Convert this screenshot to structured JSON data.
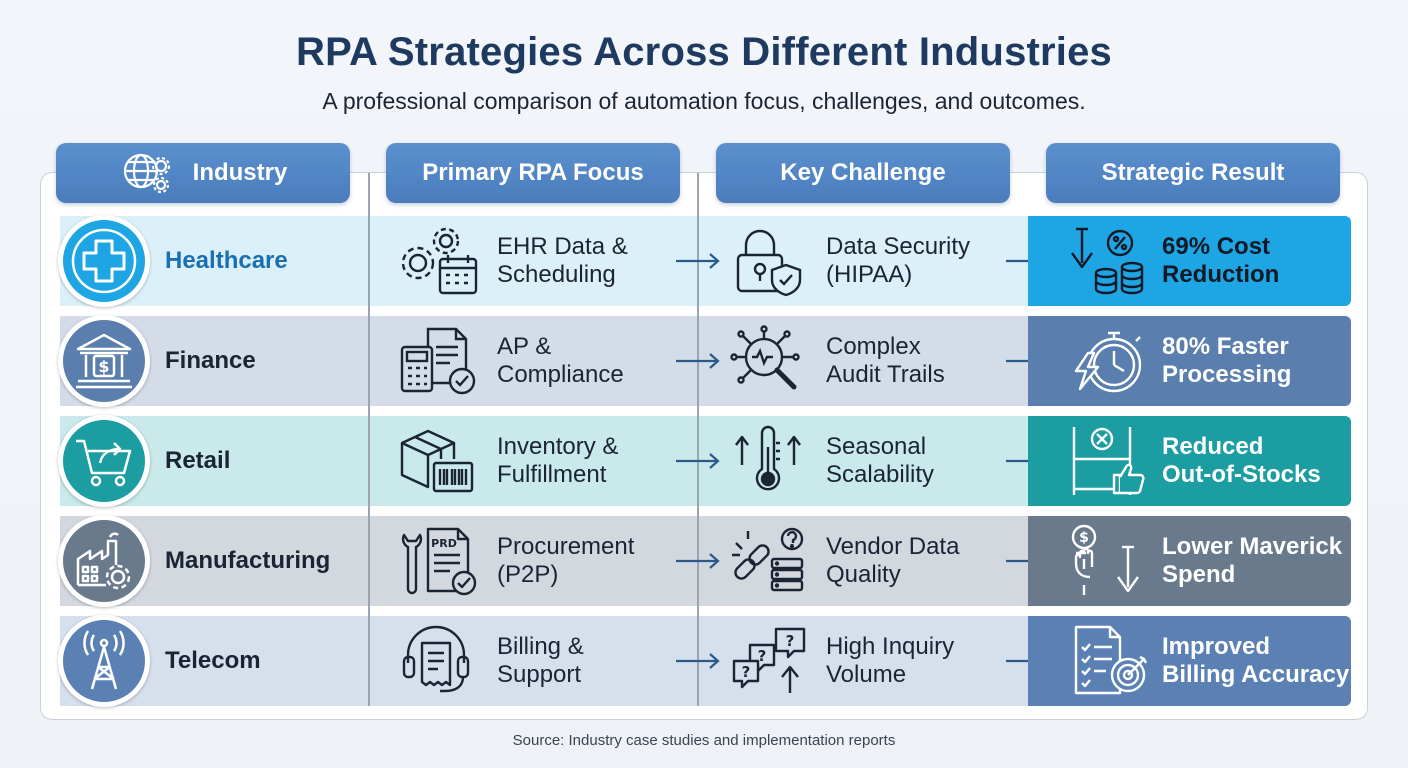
{
  "title": "RPA Strategies Across Different Industries",
  "subtitle": "A professional comparison of automation focus, challenges, and outcomes.",
  "headers": {
    "industry": "Industry",
    "focus": "Primary RPA Focus",
    "challenge": "Key Challenge",
    "result": "Strategic Result"
  },
  "rows": [
    {
      "industry": "Healthcare",
      "focus_line1": "EHR Data &",
      "focus_line2": "Scheduling",
      "challenge_line1": "Data Security",
      "challenge_line2": "(HIPAA)",
      "result_line1": "69% Cost",
      "result_line2": "Reduction"
    },
    {
      "industry": "Finance",
      "focus_line1": "AP &",
      "focus_line2": "Compliance",
      "challenge_line1": "Complex",
      "challenge_line2": "Audit Trails",
      "result_line1": "80% Faster",
      "result_line2": "Processing"
    },
    {
      "industry": "Retail",
      "focus_line1": "Inventory &",
      "focus_line2": "Fulfillment",
      "challenge_line1": "Seasonal",
      "challenge_line2": "Scalability",
      "result_line1": "Reduced",
      "result_line2": "Out-of-Stocks"
    },
    {
      "industry": "Manufacturing",
      "focus_line1": "Procurement",
      "focus_line2": "(P2P)",
      "challenge_line1": "Vendor Data",
      "challenge_line2": "Quality",
      "result_line1": "Lower Maverick",
      "result_line2": "Spend"
    },
    {
      "industry": "Telecom",
      "focus_line1": "Billing &",
      "focus_line2": "Support",
      "challenge_line1": "High Inquiry",
      "challenge_line2": "Volume",
      "result_line1": "Improved",
      "result_line2": "Billing Accuracy"
    }
  ],
  "icon_text": {
    "prd": "PRD"
  },
  "colors": {
    "healthcare_band": "#dcf0fa",
    "healthcare_result": "#1ea5e3",
    "finance_band": "#d4dce8",
    "finance_result": "#5a7fae",
    "retail_band": "#c9e9ea",
    "retail_result": "#1c9da2",
    "manufacturing_band": "#d3d8df",
    "manufacturing_result": "#687a8c",
    "telecom_band": "#d6dfec",
    "telecom_result": "#5b80b4"
  },
  "icons": {
    "header": "globe-gears-icon",
    "industries": [
      "medical-cross-icon",
      "bank-icon",
      "shopping-cart-icon",
      "factory-icon",
      "antenna-tower-icon"
    ],
    "focus": [
      "gears-calendar-icon",
      "calculator-document-icon",
      "barcode-box-icon",
      "wrench-document-icon",
      "headset-receipt-icon"
    ],
    "challenge": [
      "padlock-shield-icon",
      "magnifier-network-icon",
      "thermometer-arrows-icon",
      "broken-link-server-icon",
      "question-bubbles-icon"
    ],
    "result": [
      "cost-down-coins-icon",
      "stopwatch-lightning-icon",
      "shelf-thumbs-up-icon",
      "fist-dollar-down-icon",
      "checklist-target-icon"
    ]
  },
  "source": "Source: Industry case studies and implementation reports"
}
